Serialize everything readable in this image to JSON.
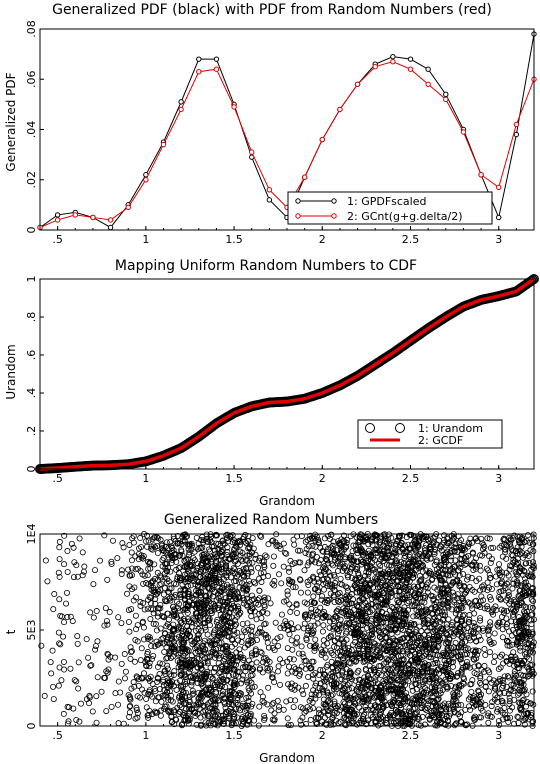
{
  "chart_data": [
    {
      "type": "line",
      "title": "Generalized PDF (black) with PDF from Random Numbers (red)",
      "xlabel": "",
      "ylabel": "Generalized PDF",
      "xlim": [
        0.4,
        3.2
      ],
      "ylim": [
        0,
        0.08
      ],
      "xticks": [
        ".5",
        "1",
        "1.5",
        "2",
        "2.5",
        "3"
      ],
      "yticks": [
        "0",
        ".02",
        ".04",
        ".06",
        ".08"
      ],
      "x": [
        0.4,
        0.5,
        0.6,
        0.7,
        0.8,
        0.9,
        1.0,
        1.1,
        1.2,
        1.3,
        1.4,
        1.5,
        1.6,
        1.7,
        1.8,
        1.9,
        2.0,
        2.1,
        2.2,
        2.3,
        2.4,
        2.5,
        2.6,
        2.7,
        2.8,
        2.9,
        3.0,
        3.1,
        3.2
      ],
      "series": [
        {
          "name": "1: GPDFscaled",
          "color": "#000000",
          "values": [
            0.001,
            0.006,
            0.007,
            0.005,
            0.001,
            0.01,
            0.022,
            0.035,
            0.051,
            0.068,
            0.068,
            0.05,
            0.029,
            0.012,
            0.005,
            0.021,
            0.036,
            0.048,
            0.058,
            0.066,
            0.069,
            0.068,
            0.064,
            0.054,
            0.04,
            0.022,
            0.005,
            0.038,
            0.078
          ]
        },
        {
          "name": "2: GCnt(g+g.delta/2)",
          "color": "#e00000",
          "values": [
            0.001,
            0.004,
            0.006,
            0.005,
            0.004,
            0.009,
            0.02,
            0.034,
            0.048,
            0.063,
            0.064,
            0.049,
            0.031,
            0.016,
            0.009,
            0.021,
            0.036,
            0.048,
            0.058,
            0.065,
            0.067,
            0.064,
            0.058,
            0.052,
            0.039,
            0.022,
            0.017,
            0.042,
            0.06
          ]
        }
      ],
      "legend": "bottom-right"
    },
    {
      "type": "line",
      "title": "Mapping Uniform Random Numbers to CDF",
      "xlabel": "Grandom",
      "ylabel": "Urandom",
      "xlim": [
        0.4,
        3.2
      ],
      "ylim": [
        0,
        1
      ],
      "xticks": [
        ".5",
        "1",
        "1.5",
        "2",
        "2.5",
        "3"
      ],
      "yticks": [
        "0",
        ".2",
        ".4",
        ".6",
        ".8",
        "1"
      ],
      "x": [
        0.4,
        0.5,
        0.6,
        0.7,
        0.8,
        0.9,
        1.0,
        1.1,
        1.2,
        1.3,
        1.4,
        1.5,
        1.6,
        1.7,
        1.8,
        1.9,
        2.0,
        2.1,
        2.2,
        2.3,
        2.4,
        2.5,
        2.6,
        2.7,
        2.8,
        2.9,
        3.0,
        3.1,
        3.2
      ],
      "series": [
        {
          "name": "1: Urandom",
          "color": "#000000",
          "marker": "circle",
          "values": [
            0.0,
            0.005,
            0.012,
            0.018,
            0.02,
            0.025,
            0.04,
            0.07,
            0.11,
            0.17,
            0.24,
            0.295,
            0.33,
            0.35,
            0.355,
            0.37,
            0.4,
            0.44,
            0.49,
            0.55,
            0.61,
            0.675,
            0.74,
            0.8,
            0.855,
            0.89,
            0.91,
            0.935,
            1.0
          ]
        },
        {
          "name": "2: GCDF",
          "color": "#e00000",
          "values": [
            0.0,
            0.005,
            0.012,
            0.018,
            0.02,
            0.025,
            0.04,
            0.07,
            0.11,
            0.17,
            0.24,
            0.295,
            0.33,
            0.35,
            0.355,
            0.37,
            0.4,
            0.44,
            0.49,
            0.55,
            0.61,
            0.675,
            0.74,
            0.8,
            0.855,
            0.89,
            0.91,
            0.935,
            1.0
          ]
        }
      ],
      "legend": "bottom-right"
    },
    {
      "type": "scatter",
      "title": "Generalized Random Numbers",
      "xlabel": "Grandom",
      "ylabel": "t",
      "xlim": [
        0.4,
        3.2
      ],
      "ylim": [
        0,
        10000
      ],
      "xticks": [
        ".5",
        "1",
        "1.5",
        "2",
        "2.5",
        "3"
      ],
      "yticks": [
        "0",
        "5E3",
        "1E4"
      ],
      "marker": "open-circle",
      "x_density": [
        0.4,
        0.5,
        0.6,
        0.7,
        0.8,
        0.9,
        1.0,
        1.1,
        1.2,
        1.3,
        1.4,
        1.5,
        1.6,
        1.7,
        1.8,
        1.9,
        2.0,
        2.1,
        2.2,
        2.3,
        2.4,
        2.5,
        2.6,
        2.7,
        2.8,
        2.9,
        3.0,
        3.1,
        3.2
      ],
      "density": [
        0.001,
        0.004,
        0.006,
        0.005,
        0.004,
        0.009,
        0.02,
        0.034,
        0.048,
        0.063,
        0.064,
        0.049,
        0.031,
        0.016,
        0.009,
        0.021,
        0.036,
        0.048,
        0.058,
        0.065,
        0.067,
        0.064,
        0.058,
        0.052,
        0.039,
        0.022,
        0.017,
        0.042,
        0.06
      ],
      "n_points": 5000
    }
  ]
}
